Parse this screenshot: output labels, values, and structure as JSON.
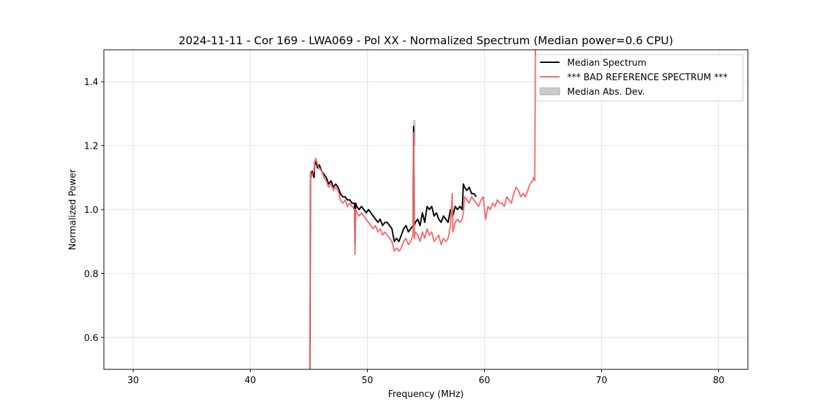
{
  "chart_data": {
    "type": "line",
    "title": "2024-11-11 - Cor 169 - LWA069 - Pol XX - Normalized Spectrum (Median power=0.6 CPU)",
    "xlabel": "Frequency (MHz)",
    "ylabel": "Normalized Power",
    "xlim": [
      27.5,
      82.5
    ],
    "ylim": [
      0.5,
      1.5
    ],
    "xticks": [
      30,
      40,
      50,
      60,
      70,
      80
    ],
    "yticks": [
      0.6,
      0.8,
      1.0,
      1.2,
      1.4
    ],
    "ytick_labels": [
      "0.6",
      "0.8",
      "1.0",
      "1.2",
      "1.4"
    ],
    "grid": true,
    "legend_position": "top-right",
    "colors": {
      "median": "#000000",
      "bad_reference": "#f76666",
      "mad_fill": "#bbbbbb"
    },
    "series": [
      {
        "name": "Median Spectrum",
        "x": [
          45.1,
          45.15,
          45.2,
          45.3,
          45.45,
          45.5,
          45.6,
          45.75,
          45.9,
          46.1,
          46.3,
          46.5,
          46.7,
          46.9,
          47.1,
          47.3,
          47.5,
          47.7,
          47.9,
          48.1,
          48.3,
          48.5,
          48.7,
          48.9,
          48.95,
          49.0,
          49.1,
          49.3,
          49.5,
          49.7,
          49.9,
          50.1,
          50.3,
          50.5,
          50.7,
          50.9,
          51.1,
          51.3,
          51.5,
          51.7,
          51.9,
          52.1,
          52.3,
          52.5,
          52.7,
          52.9,
          53.1,
          53.3,
          53.5,
          53.7,
          53.9,
          53.95,
          54.0,
          54.1,
          54.3,
          54.5,
          54.7,
          54.9,
          55.1,
          55.3,
          55.5,
          55.7,
          55.9,
          56.1,
          56.3,
          56.5,
          56.7,
          56.9,
          57.1,
          57.3,
          57.5,
          57.7,
          57.9,
          58.1,
          58.2,
          58.3,
          58.5,
          58.7,
          58.9,
          59.1,
          59.3
        ],
        "values": [
          0.5,
          1.11,
          1.11,
          1.12,
          1.1,
          1.14,
          1.15,
          1.13,
          1.14,
          1.12,
          1.11,
          1.1,
          1.08,
          1.09,
          1.07,
          1.08,
          1.07,
          1.05,
          1.04,
          1.04,
          1.03,
          1.03,
          1.02,
          1.02,
          0.9,
          1.02,
          1.01,
          1.0,
          1.01,
          1.0,
          0.99,
          1.0,
          0.99,
          0.98,
          0.97,
          0.96,
          0.97,
          0.95,
          0.96,
          0.96,
          0.95,
          0.94,
          0.9,
          0.91,
          0.9,
          0.92,
          0.94,
          0.95,
          0.93,
          0.94,
          0.95,
          1.26,
          0.95,
          0.96,
          0.97,
          0.95,
          0.99,
          0.96,
          1.01,
          1.0,
          1.01,
          0.98,
          0.99,
          0.97,
          0.96,
          0.98,
          0.97,
          0.96,
          1.0,
          0.98,
          1.01,
          1.0,
          1.01,
          1.0,
          1.08,
          1.07,
          1.06,
          1.07,
          1.05,
          1.05,
          1.04
        ]
      },
      {
        "name": "*** BAD REFERENCE SPECTRUM ***",
        "x": [
          45.1,
          45.15,
          45.2,
          45.3,
          45.45,
          45.5,
          45.6,
          45.75,
          45.9,
          46.1,
          46.3,
          46.5,
          46.7,
          46.9,
          47.1,
          47.3,
          47.5,
          47.7,
          47.9,
          48.1,
          48.3,
          48.5,
          48.7,
          48.9,
          48.95,
          49.0,
          49.1,
          49.3,
          49.5,
          49.7,
          49.9,
          50.1,
          50.3,
          50.5,
          50.7,
          50.9,
          51.1,
          51.3,
          51.5,
          51.7,
          51.9,
          52.1,
          52.3,
          52.5,
          52.7,
          52.9,
          53.1,
          53.3,
          53.5,
          53.7,
          53.9,
          53.95,
          54.0,
          54.1,
          54.3,
          54.5,
          54.7,
          54.9,
          55.1,
          55.3,
          55.5,
          55.7,
          55.9,
          56.1,
          56.3,
          56.5,
          56.7,
          56.9,
          57.1,
          57.25,
          57.3,
          57.5,
          57.7,
          57.9,
          58.1,
          58.2,
          58.3,
          58.5,
          58.7,
          58.9,
          59.1,
          59.3,
          59.5,
          59.7,
          59.9,
          60.1,
          60.3,
          60.5,
          60.7,
          60.9,
          61.1,
          61.3,
          61.5,
          61.7,
          61.9,
          62.1,
          62.3,
          62.5,
          62.7,
          62.9,
          63.1,
          63.3,
          63.5,
          63.7,
          63.9,
          64.1,
          64.2,
          64.3,
          64.35
        ],
        "values": [
          0.5,
          1.12,
          1.1,
          1.11,
          1.12,
          1.15,
          1.16,
          1.14,
          1.13,
          1.12,
          1.1,
          1.09,
          1.07,
          1.08,
          1.06,
          1.07,
          1.06,
          1.03,
          1.02,
          1.03,
          1.01,
          1.02,
          1.01,
          1.0,
          0.86,
          1.0,
          0.99,
          0.98,
          0.99,
          0.98,
          0.97,
          0.96,
          0.95,
          0.94,
          0.95,
          0.93,
          0.94,
          0.92,
          0.93,
          0.92,
          0.91,
          0.9,
          0.87,
          0.88,
          0.87,
          0.88,
          0.9,
          0.91,
          0.89,
          0.9,
          0.92,
          1.24,
          0.91,
          0.93,
          0.92,
          0.9,
          0.93,
          0.91,
          0.94,
          0.92,
          0.93,
          0.9,
          0.91,
          0.92,
          0.89,
          0.91,
          0.9,
          0.91,
          0.95,
          1.05,
          0.93,
          0.96,
          0.97,
          0.96,
          0.97,
          0.99,
          1.04,
          1.03,
          1.02,
          1.04,
          1.03,
          1.02,
          1.01,
          1.03,
          1.04,
          0.97,
          1.01,
          1.0,
          1.02,
          1.01,
          1.03,
          1.02,
          1.02,
          1.01,
          1.04,
          1.03,
          1.02,
          1.05,
          1.07,
          1.06,
          1.04,
          1.05,
          1.04,
          1.06,
          1.08,
          1.09,
          1.1,
          1.09,
          1.5
        ]
      }
    ],
    "band": {
      "name": "Median Abs. Dev.",
      "spikes": [
        {
          "x": 54.0,
          "low": 1.2,
          "high": 1.28
        }
      ]
    }
  }
}
